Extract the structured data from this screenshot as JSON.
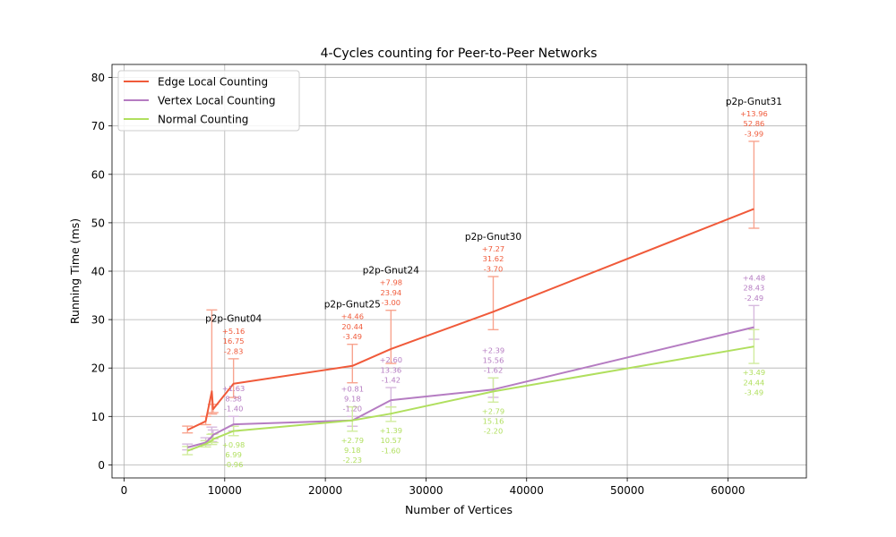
{
  "chart_data": {
    "type": "line",
    "title": "4-Cycles counting for Peer-to-Peer Networks",
    "xlabel": "Number of Vertices",
    "ylabel": "Running Time (ms)",
    "xlim": [
      -1200,
      67800
    ],
    "ylim": [
      -2.7,
      82.7
    ],
    "xticks": [
      0,
      10000,
      20000,
      30000,
      40000,
      50000,
      60000
    ],
    "yticks": [
      0,
      10,
      20,
      30,
      40,
      50,
      60,
      70,
      80
    ],
    "grid": true,
    "legend_position": "top-left",
    "colors": {
      "edge": "#f05a3a",
      "vertex": "#b57cc2",
      "normal": "#b0df5e",
      "edge_err": "#f8a48f",
      "vertex_err": "#d7b9de",
      "normal_err": "#d1ec9f"
    },
    "series": [
      {
        "name": "Edge Local Counting",
        "color": "#f05a3a",
        "err_color": "#f8a48f",
        "points": [
          {
            "x": 6301,
            "y": 7.2,
            "lo": 6.6,
            "hi": 8.0
          },
          {
            "x": 8114,
            "y": 9.0,
            "lo": 8.3,
            "hi": 10.0
          },
          {
            "x": 8717,
            "y": 15.2,
            "lo": 10.5,
            "hi": 32.0
          },
          {
            "x": 8846,
            "y": 11.5,
            "lo": 10.8,
            "hi": 12.5
          },
          {
            "x": 10876,
            "y": 16.75,
            "lo": 13.92,
            "hi": 21.91
          },
          {
            "x": 22687,
            "y": 20.44,
            "lo": 16.95,
            "hi": 24.9
          },
          {
            "x": 26518,
            "y": 23.94,
            "lo": 20.94,
            "hi": 31.92
          },
          {
            "x": 36682,
            "y": 31.62,
            "lo": 27.92,
            "hi": 38.89
          },
          {
            "x": 62586,
            "y": 52.86,
            "lo": 48.87,
            "hi": 66.82
          }
        ]
      },
      {
        "name": "Vertex Local Counting",
        "color": "#b57cc2",
        "err_color": "#d7b9de",
        "points": [
          {
            "x": 6301,
            "y": 3.6,
            "lo": 3.1,
            "hi": 4.3
          },
          {
            "x": 8114,
            "y": 4.6,
            "lo": 4.1,
            "hi": 5.6
          },
          {
            "x": 8717,
            "y": 5.8,
            "lo": 4.8,
            "hi": 7.8
          },
          {
            "x": 8846,
            "y": 6.2,
            "lo": 5.4,
            "hi": 7.2
          },
          {
            "x": 10876,
            "y": 8.38,
            "lo": 6.98,
            "hi": 10.01
          },
          {
            "x": 22687,
            "y": 9.18,
            "lo": 7.98,
            "hi": 9.99
          },
          {
            "x": 26518,
            "y": 13.36,
            "lo": 11.94,
            "hi": 15.96
          },
          {
            "x": 36682,
            "y": 15.56,
            "lo": 13.94,
            "hi": 17.95
          },
          {
            "x": 62586,
            "y": 28.43,
            "lo": 25.94,
            "hi": 32.91
          }
        ]
      },
      {
        "name": "Normal Counting",
        "color": "#b0df5e",
        "err_color": "#d1ec9f",
        "points": [
          {
            "x": 6301,
            "y": 2.9,
            "lo": 2.1,
            "hi": 3.8
          },
          {
            "x": 8114,
            "y": 4.3,
            "lo": 3.7,
            "hi": 5.0
          },
          {
            "x": 8717,
            "y": 5.0,
            "lo": 4.2,
            "hi": 6.3
          },
          {
            "x": 8846,
            "y": 5.3,
            "lo": 4.6,
            "hi": 6.4
          },
          {
            "x": 10876,
            "y": 6.99,
            "lo": 6.03,
            "hi": 7.97
          },
          {
            "x": 22687,
            "y": 9.18,
            "lo": 6.95,
            "hi": 11.97
          },
          {
            "x": 26518,
            "y": 10.57,
            "lo": 8.97,
            "hi": 11.96
          },
          {
            "x": 36682,
            "y": 15.16,
            "lo": 12.96,
            "hi": 17.95
          },
          {
            "x": 62586,
            "y": 24.44,
            "lo": 20.95,
            "hi": 27.93
          }
        ]
      }
    ],
    "annotations": [
      {
        "x": 10876,
        "name": "p2p-Gnut04",
        "dy_name": -0.5,
        "edge": [
          "+5.16",
          "16.75",
          "-2.83"
        ],
        "vertex": [
          "+1.63",
          "8.38",
          "-1.40"
        ],
        "normal": [
          "+0.98",
          "6.99",
          "-0.96"
        ]
      },
      {
        "x": 22687,
        "name": "p2p-Gnut25",
        "dy_name": 0.0,
        "edge": [
          "+4.46",
          "20.44",
          "-3.49"
        ],
        "vertex": [
          "+0.81",
          "9.18",
          "-1.20"
        ],
        "normal": [
          "+2.79",
          "9.18",
          "-2.23"
        ]
      },
      {
        "x": 26518,
        "name": "p2p-Gnut24",
        "dy_name": 0.0,
        "edge": [
          "+7.98",
          "23.94",
          "-3.00"
        ],
        "vertex": [
          "+2.60",
          "13.36",
          "-1.42"
        ],
        "normal": [
          "+1.39",
          "10.57",
          "-1.60"
        ]
      },
      {
        "x": 36682,
        "name": "p2p-Gnut30",
        "dy_name": 0.0,
        "edge": [
          "+7.27",
          "31.62",
          "-3.70"
        ],
        "vertex": [
          "+2.39",
          "15.56",
          "-1.62"
        ],
        "normal": [
          "+2.79",
          "15.16",
          "-2.20"
        ]
      },
      {
        "x": 62586,
        "name": "p2p-Gnut31",
        "dy_name": 0.0,
        "edge": [
          "+13.96",
          "52.86",
          "-3.99"
        ],
        "vertex": [
          "+4.48",
          "28.43",
          "-2.49"
        ],
        "normal": [
          "+3.49",
          "24.44",
          "-3.49"
        ]
      }
    ]
  }
}
